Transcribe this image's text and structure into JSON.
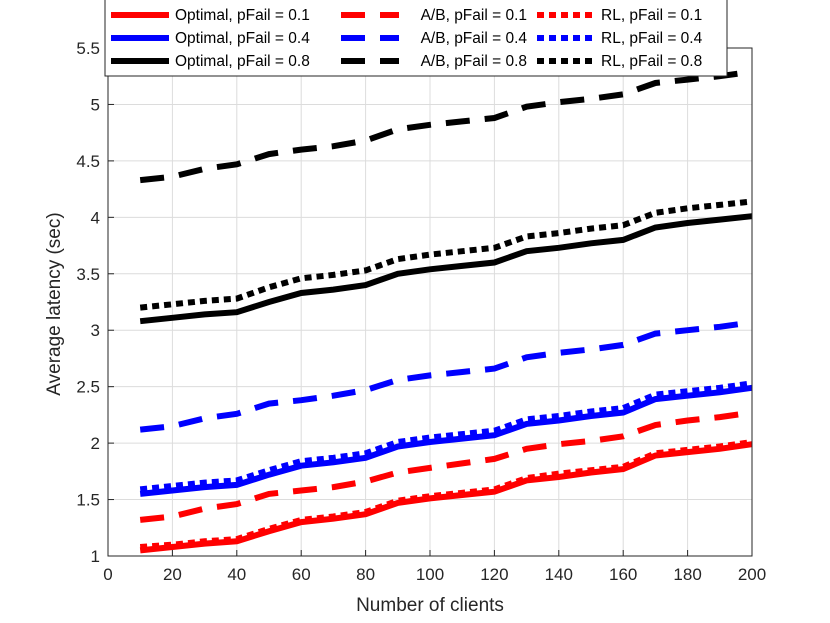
{
  "chart_data": {
    "type": "line",
    "title": "",
    "xlabel": "Number of clients",
    "ylabel": "Average latency (sec)",
    "xlim": [
      0,
      200
    ],
    "ylim": [
      1,
      5.5
    ],
    "xticks": [
      0,
      20,
      40,
      60,
      80,
      100,
      120,
      140,
      160,
      180,
      200
    ],
    "yticks": [
      1,
      1.5,
      2,
      2.5,
      3,
      3.5,
      4,
      4.5,
      5,
      5.5
    ],
    "xtick_labels": [
      "0",
      "20",
      "40",
      "60",
      "80",
      "100",
      "120",
      "140",
      "160",
      "180",
      "200"
    ],
    "ytick_labels": [
      "1",
      "1.5",
      "2",
      "2.5",
      "3",
      "3.5",
      "4",
      "4.5",
      "5",
      "5.5"
    ],
    "grid": true,
    "legend_position": "top",
    "x": [
      10,
      20,
      30,
      40,
      50,
      60,
      70,
      80,
      90,
      100,
      110,
      120,
      130,
      140,
      150,
      160,
      170,
      180,
      190,
      200
    ],
    "series": [
      {
        "name": "Optimal, pFail = 0.1",
        "color": "#ff0000",
        "style": "solid",
        "values": [
          1.05,
          1.08,
          1.11,
          1.13,
          1.22,
          1.3,
          1.33,
          1.37,
          1.47,
          1.51,
          1.54,
          1.57,
          1.67,
          1.7,
          1.74,
          1.77,
          1.89,
          1.92,
          1.95,
          1.99
        ]
      },
      {
        "name": "Optimal, pFail = 0.4",
        "color": "#0000ff",
        "style": "solid",
        "values": [
          1.55,
          1.58,
          1.61,
          1.63,
          1.72,
          1.8,
          1.83,
          1.87,
          1.97,
          2.01,
          2.04,
          2.07,
          2.17,
          2.2,
          2.24,
          2.27,
          2.39,
          2.42,
          2.45,
          2.49
        ]
      },
      {
        "name": "Optimal, pFail = 0.8",
        "color": "#000000",
        "style": "solid",
        "values": [
          3.08,
          3.11,
          3.14,
          3.16,
          3.25,
          3.33,
          3.36,
          3.4,
          3.5,
          3.54,
          3.57,
          3.6,
          3.7,
          3.73,
          3.77,
          3.8,
          3.91,
          3.95,
          3.98,
          4.01
        ]
      },
      {
        "name": "A/B, pFail = 0.1",
        "color": "#ff0000",
        "style": "dashed",
        "values": [
          1.32,
          1.35,
          1.42,
          1.46,
          1.55,
          1.58,
          1.61,
          1.66,
          1.74,
          1.78,
          1.82,
          1.86,
          1.95,
          1.99,
          2.02,
          2.06,
          2.16,
          2.2,
          2.23,
          2.27
        ]
      },
      {
        "name": "A/B, pFail = 0.4",
        "color": "#0000ff",
        "style": "dashed",
        "values": [
          2.12,
          2.15,
          2.22,
          2.26,
          2.35,
          2.38,
          2.42,
          2.47,
          2.56,
          2.6,
          2.63,
          2.66,
          2.76,
          2.8,
          2.83,
          2.87,
          2.97,
          3.0,
          3.03,
          3.07
        ]
      },
      {
        "name": "A/B, pFail = 0.8",
        "color": "#000000",
        "style": "dashed",
        "values": [
          4.33,
          4.36,
          4.43,
          4.47,
          4.56,
          4.6,
          4.63,
          4.68,
          4.78,
          4.82,
          4.85,
          4.88,
          4.98,
          5.02,
          5.05,
          5.09,
          5.19,
          5.22,
          5.25,
          5.29
        ]
      },
      {
        "name": "RL, pFail = 0.1",
        "color": "#ff0000",
        "style": "dotted",
        "values": [
          1.08,
          1.1,
          1.13,
          1.15,
          1.24,
          1.32,
          1.35,
          1.39,
          1.49,
          1.53,
          1.56,
          1.59,
          1.69,
          1.73,
          1.76,
          1.79,
          1.91,
          1.94,
          1.97,
          2.01
        ]
      },
      {
        "name": "RL, pFail = 0.4",
        "color": "#0000ff",
        "style": "dotted",
        "values": [
          1.59,
          1.62,
          1.65,
          1.67,
          1.76,
          1.84,
          1.87,
          1.91,
          2.01,
          2.05,
          2.08,
          2.11,
          2.21,
          2.24,
          2.28,
          2.31,
          2.43,
          2.46,
          2.49,
          2.53
        ]
      },
      {
        "name": "RL, pFail = 0.8",
        "color": "#000000",
        "style": "dotted",
        "values": [
          3.2,
          3.23,
          3.26,
          3.28,
          3.38,
          3.46,
          3.49,
          3.53,
          3.63,
          3.67,
          3.7,
          3.73,
          3.83,
          3.86,
          3.9,
          3.93,
          4.04,
          4.08,
          4.11,
          4.14
        ]
      }
    ]
  }
}
